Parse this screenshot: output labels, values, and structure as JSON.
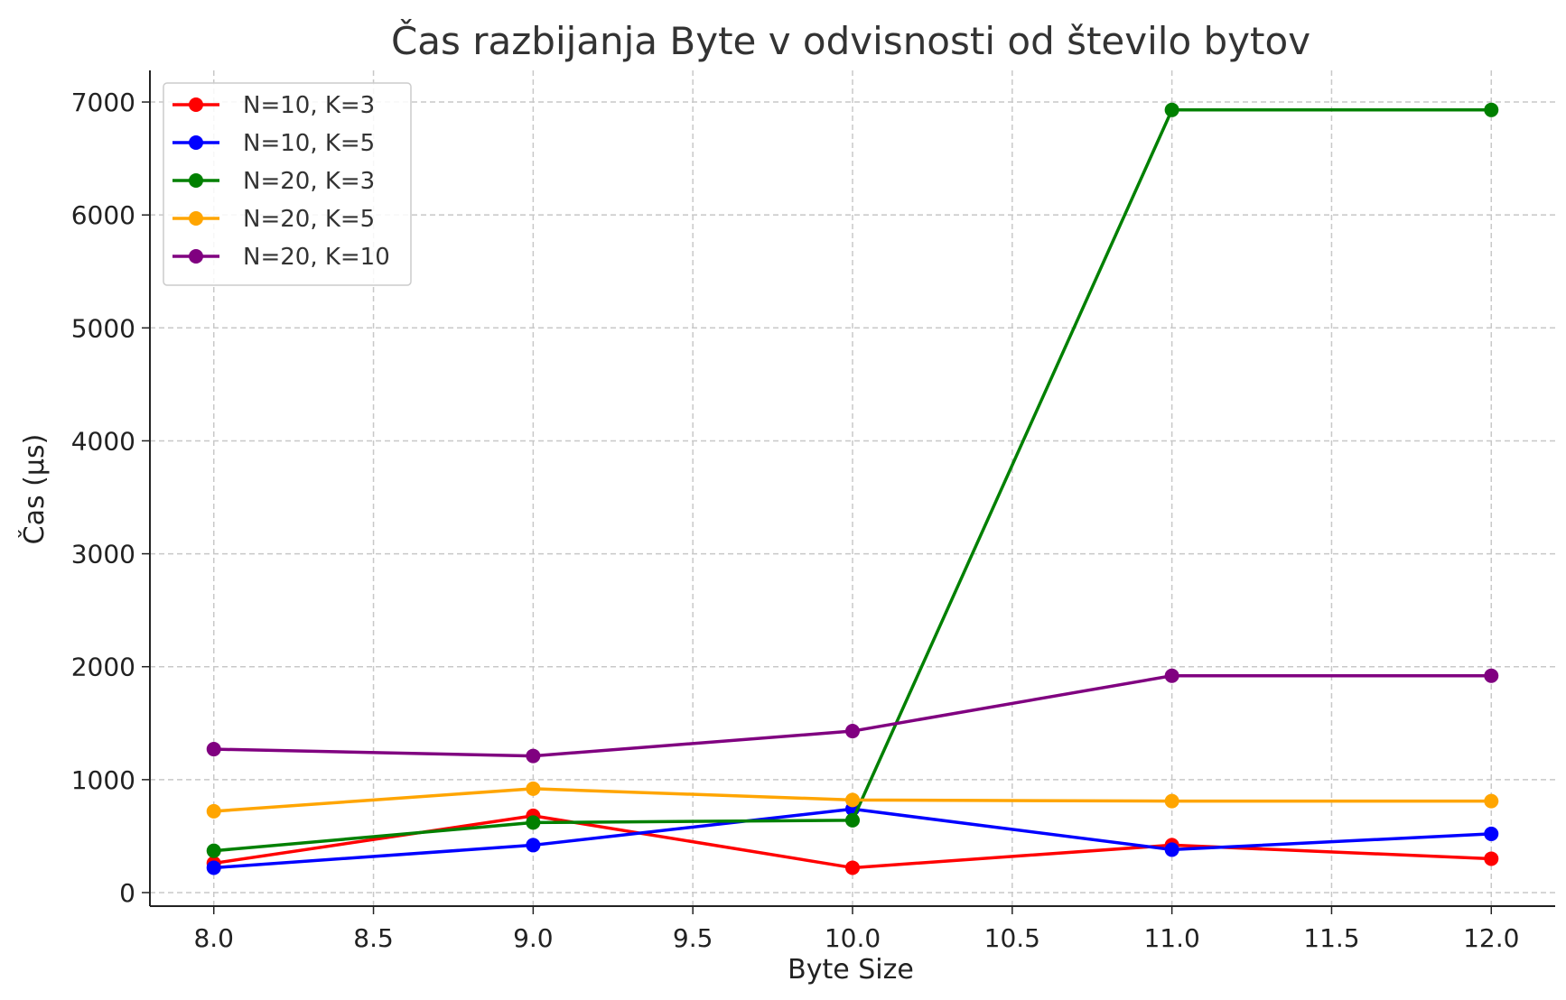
{
  "chart_data": {
    "type": "line",
    "title": "Čas razbijanja Byte v odvisnosti od število bytov",
    "xlabel": "Byte Size",
    "ylabel": "Čas (µs)",
    "x": [
      8.0,
      9.0,
      10.0,
      11.0,
      12.0
    ],
    "xlim": [
      7.8,
      12.2
    ],
    "ylim": [
      -120,
      7280
    ],
    "xticks": [
      "8.0",
      "8.5",
      "9.0",
      "9.5",
      "10.0",
      "10.5",
      "11.0",
      "11.5",
      "12.0"
    ],
    "yticks": [
      "0",
      "1000",
      "2000",
      "3000",
      "4000",
      "5000",
      "6000",
      "7000"
    ],
    "grid": true,
    "legend_position": "top-left",
    "series": [
      {
        "name": "N=10, K=3",
        "color": "#ff0000",
        "values": [
          260,
          680,
          220,
          420,
          300
        ]
      },
      {
        "name": "N=10, K=5",
        "color": "#0000ff",
        "values": [
          220,
          420,
          740,
          380,
          520
        ]
      },
      {
        "name": "N=20, K=3",
        "color": "#008000",
        "values": [
          370,
          620,
          640,
          6930,
          6930
        ]
      },
      {
        "name": "N=20, K=5",
        "color": "#ffa500",
        "values": [
          720,
          920,
          820,
          810,
          810
        ]
      },
      {
        "name": "N=20, K=10",
        "color": "#800080",
        "values": [
          1270,
          1210,
          1430,
          1920,
          1920
        ]
      }
    ]
  }
}
